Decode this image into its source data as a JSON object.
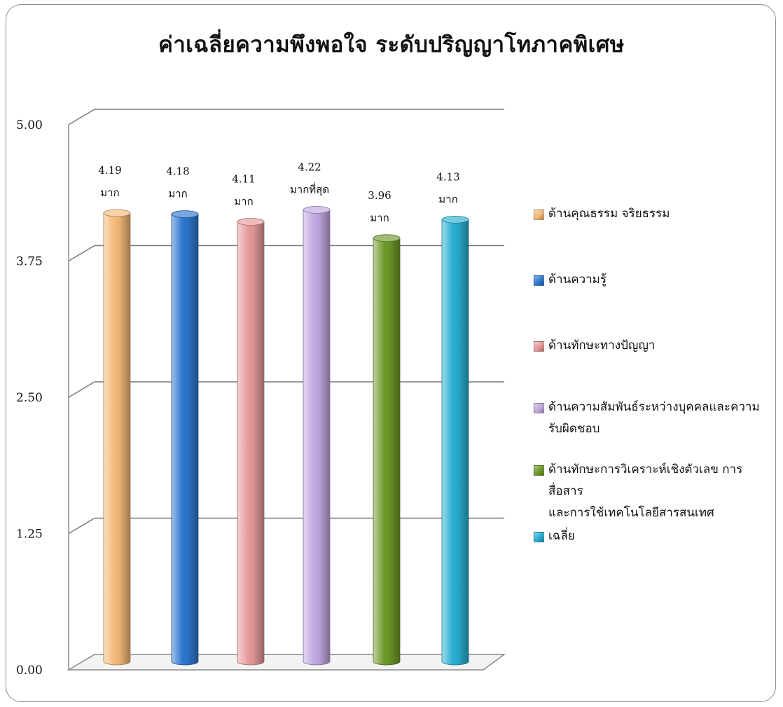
{
  "chart_data": {
    "type": "bar",
    "title": "ค่าเฉลี่ยความพึงพอใจ ระดับปริญญาโทภาคพิเศษ",
    "categories": [
      "ด้านคุณธรรม จริยธรรม",
      "ด้านความรู้",
      "ด้านทักษะทางปัญญา",
      "ด้านความสัมพันธ์ระหว่างบุคคลและความรับผิดชอบ",
      "ด้านทักษะการวิเคราะห์เชิงตัวเลข การสื่อสารและการใช้เทคโนโลยีสารสนเทศ",
      "เฉลี่ย"
    ],
    "values": [
      4.19,
      4.18,
      4.11,
      4.22,
      3.96,
      4.13
    ],
    "value_labels": [
      "4.19",
      "4.18",
      "4.11",
      "4.22",
      "3.96",
      "4.13"
    ],
    "level_labels": [
      "มาก",
      "มาก",
      "มาก",
      "มากที่สุด",
      "มาก",
      "มาก"
    ],
    "ylim": [
      0,
      5
    ],
    "yticks": [
      "0.00",
      "1.25",
      "2.50",
      "3.75",
      "5.00"
    ],
    "grid": true,
    "legend_position": "right",
    "legend": [
      {
        "label": "ด้านคุณธรรม จริยธรรม",
        "label_line2": "",
        "color": "#F5B978"
      },
      {
        "label": "ด้านความรู้",
        "label_line2": "",
        "color": "#2F78CF"
      },
      {
        "label": "ด้านทักษะทางปัญญา",
        "label_line2": "",
        "color": "#E79A9A"
      },
      {
        "label": "ด้านความสัมพันธ์ระหว่างบุคคลและความ",
        "label_line2": "รับผิดชอบ",
        "color": "#C2A8E0"
      },
      {
        "label": "ด้านทักษะการวิเคราะห์เชิงตัวเลข การสื่อสาร",
        "label_line2": "และการใช้เทคโนโลยีสารสนเทศ",
        "color": "#6E9A2A"
      },
      {
        "label": "เฉลี่ย",
        "label_line2": "",
        "color": "#2AAFD3"
      }
    ],
    "colors": [
      "#F5B978",
      "#2F78CF",
      "#E79A9A",
      "#C2A8E0",
      "#6E9A2A",
      "#2AAFD3"
    ]
  }
}
